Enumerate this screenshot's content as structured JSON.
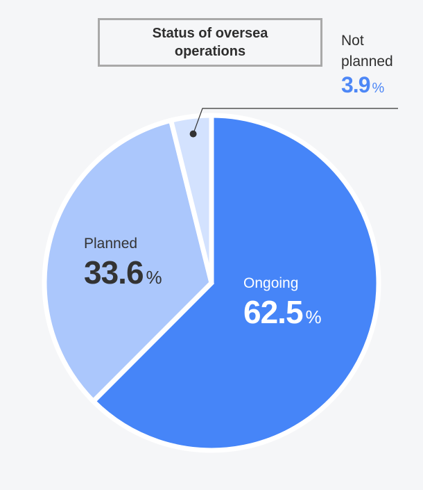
{
  "chart_data": {
    "type": "pie",
    "title": "Status of oversea operations",
    "unit": "%",
    "slices": [
      {
        "label": "Ongoing",
        "value": 62.5,
        "color": "#4685f8"
      },
      {
        "label": "Planned",
        "value": 33.6,
        "color": "#abc7fc"
      },
      {
        "label": "Not planned",
        "value": 3.9,
        "color": "#d3e2fe"
      }
    ],
    "start_angle_deg": 0,
    "direction": "clockwise"
  },
  "colors": {
    "background": "#f5f6f8",
    "slice_border": "#ffffff",
    "leader_line": "#333333",
    "title_border": "#a9a9a9",
    "not_planned_value": "#4d87f6"
  }
}
